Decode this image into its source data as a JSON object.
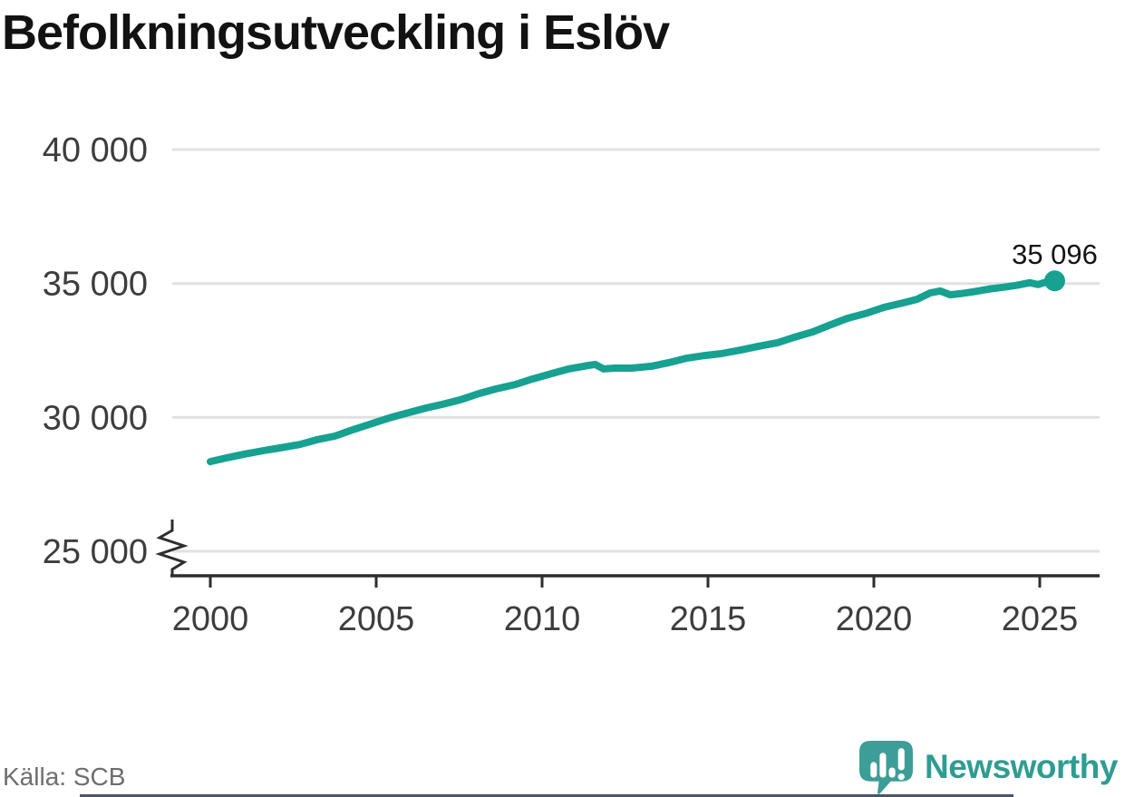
{
  "title": "Befolkningsutveckling i Eslöv",
  "source": "Källa: SCB",
  "branding": {
    "name": "Newsworthy",
    "wordmark_color": "#2F9C93",
    "icon_color": "#3C9E96",
    "icon": "newsworthy-speech-bubble-chart-icon"
  },
  "chart_data": {
    "type": "line",
    "title": "Befolkningsutveckling i Eslöv",
    "xlabel": "",
    "ylabel": "",
    "grid": "horizontal",
    "legend": "none",
    "axis_break": true,
    "x_ticks": [
      2000,
      2005,
      2010,
      2015,
      2020,
      2025
    ],
    "y_ticks": [
      40000,
      35000,
      30000,
      25000
    ],
    "y_tick_labels": [
      "40 000",
      "35 000",
      "30 000",
      "25 000"
    ],
    "x_range_shown": [
      1998.9,
      2026.7
    ],
    "y_range_shown": [
      24100,
      40000
    ],
    "end_label": "35 096",
    "end_value": 35096,
    "colors": {
      "line": "#16A190",
      "grid": "#E1E1E1",
      "axis": "#2E2E2E",
      "tick_label": "#3D3D3D",
      "end_label": "#141414"
    },
    "series": [
      {
        "color": "#16A190",
        "x": [
          2000.0,
          2000.5,
          2001.0,
          2001.6,
          2002.1,
          2002.7,
          2003.2,
          2003.75,
          2004.3,
          2004.8,
          2005.4,
          2005.9,
          2006.5,
          2007.0,
          2007.55,
          2008.1,
          2008.6,
          2009.2,
          2009.7,
          2010.3,
          2010.8,
          2011.4,
          2011.6,
          2011.85,
          2012.2,
          2012.7,
          2013.3,
          2013.8,
          2014.35,
          2014.9,
          2015.4,
          2016.0,
          2016.5,
          2017.1,
          2017.6,
          2018.15,
          2018.7,
          2019.2,
          2019.8,
          2020.3,
          2020.9,
          2021.3,
          2021.7,
          2022.0,
          2022.3,
          2022.6,
          2023.0,
          2023.45,
          2023.9,
          2024.3,
          2024.7,
          2024.95,
          2025.2,
          2025.45
        ],
        "y": [
          28350,
          28490,
          28620,
          28760,
          28860,
          28990,
          29160,
          29300,
          29540,
          29740,
          29980,
          30150,
          30350,
          30490,
          30660,
          30890,
          31060,
          31230,
          31430,
          31640,
          31810,
          31940,
          31980,
          31810,
          31840,
          31840,
          31910,
          32040,
          32210,
          32310,
          32380,
          32520,
          32650,
          32790,
          32990,
          33190,
          33460,
          33700,
          33900,
          34110,
          34280,
          34410,
          34650,
          34720,
          34580,
          34620,
          34690,
          34790,
          34860,
          34930,
          35030,
          34960,
          35060,
          35096
        ]
      }
    ]
  }
}
